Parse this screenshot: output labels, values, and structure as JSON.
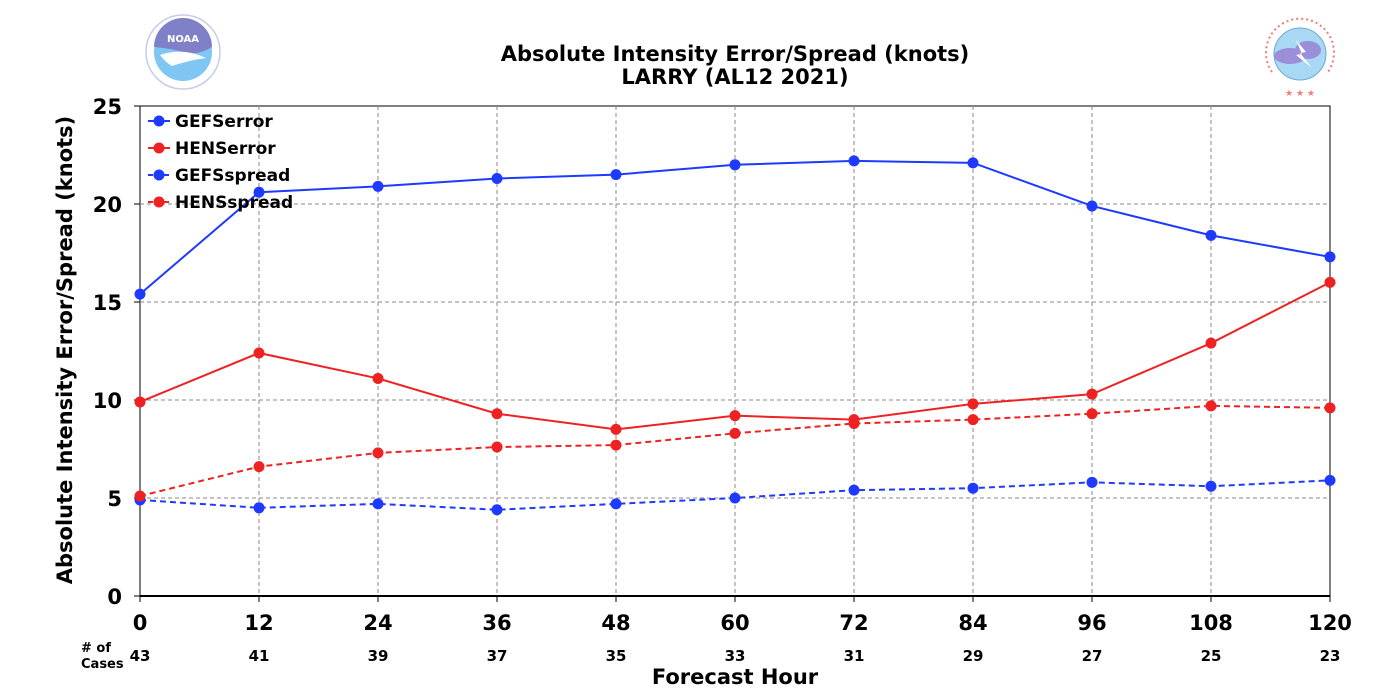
{
  "chart_data": {
    "type": "line",
    "title": "Absolute Intensity Error/Spread (knots)",
    "subtitle": "LARRY (AL12 2021)",
    "xlabel": "Forecast Hour",
    "ylabel": "Absolute Intensity Error/Spread (knots)",
    "x": [
      0,
      12,
      24,
      36,
      48,
      60,
      72,
      84,
      96,
      108,
      120
    ],
    "x_tick_labels": [
      "0",
      "12",
      "24",
      "36",
      "48",
      "60",
      "72",
      "84",
      "96",
      "108",
      "120"
    ],
    "y_ticks": [
      0,
      5,
      10,
      15,
      20,
      25
    ],
    "xlim": [
      0,
      120
    ],
    "ylim": [
      0,
      25
    ],
    "grid": true,
    "legend_position": "top-left",
    "cases_label_line1": "# of",
    "cases_label_line2": "Cases",
    "cases": [
      43,
      41,
      39,
      37,
      35,
      33,
      31,
      29,
      27,
      25,
      23
    ],
    "series": [
      {
        "name": "GEFSerror",
        "color": "#1f3aff",
        "style": "solid",
        "values": [
          15.4,
          20.6,
          20.9,
          21.3,
          21.5,
          22.0,
          22.2,
          22.1,
          19.9,
          18.4,
          17.3
        ]
      },
      {
        "name": "HENSerror",
        "color": "#ee2222",
        "style": "solid",
        "values": [
          9.9,
          12.4,
          11.1,
          9.3,
          8.5,
          9.2,
          9.0,
          9.8,
          10.3,
          12.9,
          16.0
        ]
      },
      {
        "name": "GEFSspread",
        "color": "#1f3aff",
        "style": "dashed",
        "values": [
          4.9,
          4.5,
          4.7,
          4.4,
          4.7,
          5.0,
          5.4,
          5.5,
          5.8,
          5.6,
          5.9
        ]
      },
      {
        "name": "HENSspread",
        "color": "#ee2222",
        "style": "dashed",
        "values": [
          5.1,
          6.6,
          7.3,
          7.6,
          7.7,
          8.3,
          8.8,
          9.0,
          9.3,
          9.7,
          9.6
        ]
      }
    ]
  },
  "logos": {
    "left": {
      "text": "NOAA",
      "ring_text": "NATIONAL OCEANIC AND ATMOSPHERIC ADMINISTRATION · U.S. DEPARTMENT OF COMMERCE"
    },
    "right": {
      "ring_text": "NATIONAL WEATHER SERVICE"
    }
  }
}
